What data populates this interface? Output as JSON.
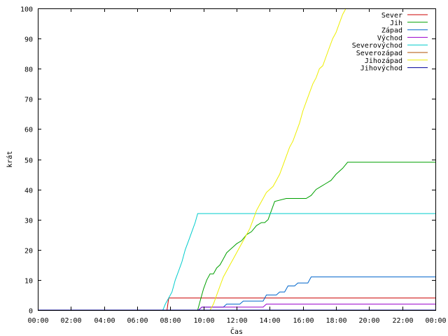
{
  "chart_data": {
    "type": "line",
    "title": "",
    "xlabel": "Čas",
    "ylabel": "krát",
    "xlim": [
      0,
      24
    ],
    "ylim": [
      0,
      100
    ],
    "x_ticks": [
      {
        "value": 0,
        "label": "00:00"
      },
      {
        "value": 2,
        "label": "02:00"
      },
      {
        "value": 4,
        "label": "04:00"
      },
      {
        "value": 6,
        "label": "06:00"
      },
      {
        "value": 8,
        "label": "08:00"
      },
      {
        "value": 10,
        "label": "10:00"
      },
      {
        "value": 12,
        "label": "12:00"
      },
      {
        "value": 14,
        "label": "14:00"
      },
      {
        "value": 16,
        "label": "16:00"
      },
      {
        "value": 18,
        "label": "18:00"
      },
      {
        "value": 20,
        "label": "20:00"
      },
      {
        "value": 22,
        "label": "22:00"
      },
      {
        "value": 24,
        "label": "00:00"
      }
    ],
    "y_ticks": [
      {
        "value": 0,
        "label": "0"
      },
      {
        "value": 10,
        "label": "10"
      },
      {
        "value": 20,
        "label": "20"
      },
      {
        "value": 30,
        "label": "30"
      },
      {
        "value": 40,
        "label": "40"
      },
      {
        "value": 50,
        "label": "50"
      },
      {
        "value": 60,
        "label": "60"
      },
      {
        "value": 70,
        "label": "70"
      },
      {
        "value": 80,
        "label": "80"
      },
      {
        "value": 90,
        "label": "90"
      },
      {
        "value": 100,
        "label": "100"
      }
    ],
    "grid": false,
    "legend_position": "top-right",
    "series": [
      {
        "name": "Sever",
        "color": "#cc0000",
        "x": [
          0,
          7.8,
          7.9,
          24
        ],
        "y": [
          0,
          0,
          4,
          4
        ]
      },
      {
        "name": "Jih",
        "color": "#00a000",
        "x": [
          0,
          9.65,
          9.8,
          10.0,
          10.2,
          10.4,
          10.6,
          10.8,
          11.0,
          11.2,
          11.4,
          11.6,
          11.8,
          12.0,
          12.3,
          12.6,
          12.9,
          13.2,
          13.5,
          13.7,
          13.9,
          14.1,
          14.3,
          15.0,
          16.0,
          16.2,
          16.5,
          16.8,
          17.1,
          17.4,
          17.7,
          18.0,
          18.4,
          18.7,
          19.5,
          24
        ],
        "y": [
          0,
          0,
          3,
          7,
          10,
          12,
          12,
          14,
          15,
          17,
          19,
          20,
          21,
          22,
          23,
          25,
          26,
          28,
          29,
          29,
          30,
          33,
          36,
          37,
          37,
          37,
          38,
          40,
          41,
          42,
          43,
          45,
          47,
          49,
          49,
          49
        ]
      },
      {
        "name": "Západ",
        "color": "#0066cc",
        "x": [
          0,
          9.7,
          9.9,
          11.2,
          11.4,
          12.2,
          12.4,
          13.6,
          13.8,
          14.4,
          14.6,
          14.9,
          15.1,
          15.5,
          15.7,
          16.3,
          16.5,
          24
        ],
        "y": [
          0,
          0,
          1,
          1,
          2,
          2,
          3,
          3,
          5,
          5,
          6,
          6,
          8,
          8,
          9,
          9,
          11,
          11
        ]
      },
      {
        "name": "Východ",
        "color": "#9900cc",
        "x": [
          0,
          9.7,
          9.9,
          12.0,
          12.2,
          13.6,
          13.8,
          24
        ],
        "y": [
          0,
          0,
          1,
          1,
          1,
          1,
          2,
          2
        ]
      },
      {
        "name": "Severovýchod",
        "color": "#00cccc",
        "x": [
          0,
          7.55,
          7.7,
          7.9,
          8.1,
          8.3,
          8.5,
          8.7,
          8.9,
          9.1,
          9.3,
          9.5,
          9.65,
          24
        ],
        "y": [
          0,
          0,
          2,
          4,
          6,
          10,
          13,
          16,
          20,
          23,
          26,
          29,
          32,
          32
        ]
      },
      {
        "name": "Severozápad",
        "color": "#b05000",
        "x": [
          0,
          24
        ],
        "y": [
          0,
          0
        ]
      },
      {
        "name": "Jihozápad",
        "color": "#eeee00",
        "x": [
          0,
          10.4,
          10.6,
          10.8,
          11.0,
          11.2,
          11.4,
          11.6,
          11.8,
          12.0,
          12.2,
          12.4,
          12.6,
          12.8,
          13.0,
          13.2,
          13.4,
          13.6,
          13.8,
          14.0,
          14.2,
          14.4,
          14.6,
          14.8,
          15.0,
          15.2,
          15.4,
          15.6,
          15.8,
          16.0,
          16.2,
          16.4,
          16.6,
          16.8,
          17.0,
          17.2,
          17.4,
          17.6,
          17.8,
          18.0,
          18.2,
          18.4,
          18.6
        ],
        "y": [
          0,
          0,
          2,
          5,
          8,
          11,
          13,
          15,
          17,
          19,
          21,
          23,
          25,
          27,
          30,
          33,
          35,
          37,
          39,
          40,
          41,
          43,
          45,
          48,
          51,
          54,
          56,
          59,
          62,
          66,
          69,
          72,
          75,
          77,
          80,
          81,
          84,
          87,
          90,
          92,
          95,
          98,
          100
        ]
      },
      {
        "name": "Jihovýchod",
        "color": "#000099",
        "x": [
          0,
          24
        ],
        "y": [
          0,
          0
        ]
      }
    ]
  }
}
